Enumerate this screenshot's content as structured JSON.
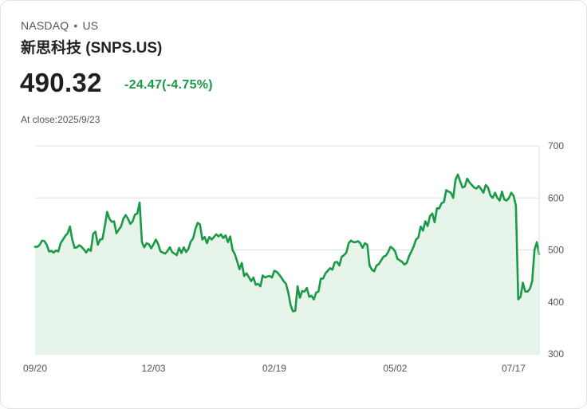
{
  "header": {
    "exchange": "NASDAQ",
    "separator": "•",
    "region": "US",
    "name": "新思科技 (SNPS.US)",
    "price": "490.32",
    "change": "-24.47(-4.75%)",
    "close_label": "At close:2025/9/23"
  },
  "colors": {
    "line": "#1a9a46",
    "fill": "#e6f4ea",
    "grid": "#e0e0e0",
    "change": "#1a9a46"
  },
  "chart_data": {
    "type": "area",
    "title": "",
    "xlabel": "",
    "ylabel": "",
    "ylim": [
      300,
      700
    ],
    "yticks": [
      300,
      400,
      500,
      600,
      700
    ],
    "x_tick_labels": [
      "09/20",
      "12/03",
      "02/19",
      "05/02",
      "07/17"
    ],
    "x_tick_index": [
      0,
      51,
      103,
      155,
      206
    ],
    "values": [
      506,
      506,
      510,
      518,
      517,
      510,
      497,
      498,
      495,
      499,
      497,
      513,
      520,
      527,
      532,
      545,
      520,
      504,
      505,
      509,
      506,
      501,
      495,
      502,
      498,
      531,
      535,
      510,
      520,
      521,
      545,
      573,
      560,
      554,
      555,
      532,
      539,
      545,
      560,
      567,
      560,
      550,
      555,
      568,
      570,
      591,
      515,
      505,
      513,
      511,
      503,
      511,
      520,
      511,
      497,
      495,
      493,
      498,
      505,
      496,
      493,
      490,
      504,
      494,
      505,
      496,
      502,
      516,
      522,
      540,
      552,
      549,
      520,
      525,
      513,
      525,
      520,
      525,
      530,
      526,
      530,
      523,
      528,
      515,
      526,
      500,
      492,
      478,
      463,
      475,
      450,
      455,
      448,
      440,
      447,
      433,
      435,
      430,
      451,
      447,
      449,
      450,
      447,
      460,
      458,
      453,
      447,
      440,
      435,
      418,
      394,
      382,
      383,
      430,
      408,
      421,
      420,
      427,
      410,
      412,
      405,
      418,
      420,
      445,
      445,
      455,
      460,
      465,
      462,
      476,
      477,
      470,
      487,
      490,
      495,
      513,
      518,
      515,
      515,
      517,
      513,
      504,
      513,
      510,
      470,
      462,
      459,
      470,
      473,
      480,
      487,
      489,
      496,
      506,
      503,
      497,
      483,
      480,
      477,
      472,
      475,
      488,
      497,
      507,
      520,
      524,
      545,
      537,
      555,
      546,
      565,
      570,
      553,
      580,
      580,
      590,
      592,
      615,
      612,
      610,
      600,
      635,
      645,
      632,
      620,
      622,
      637,
      630,
      625,
      620,
      618,
      623,
      617,
      610,
      625,
      620,
      605,
      600,
      610,
      600,
      595,
      612,
      597,
      595,
      600,
      610,
      604,
      585,
      405,
      410,
      437,
      420,
      420,
      425,
      440,
      500,
      515,
      492
    ]
  }
}
